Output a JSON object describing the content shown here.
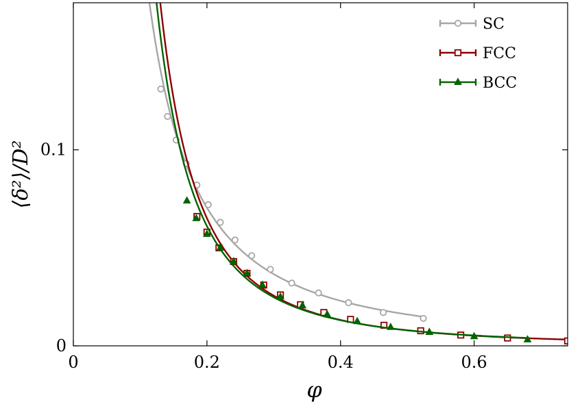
{
  "chart_data": {
    "type": "line",
    "xlabel": "φ",
    "ylabel": "⟨δ²⟩/D²",
    "xlim": [
      0,
      0.74
    ],
    "ylim": [
      0,
      0.175
    ],
    "x_ticks": [
      0,
      0.2,
      0.4,
      0.6
    ],
    "x_tick_labels": [
      "0",
      "0.2",
      "0.4",
      "0.6"
    ],
    "y_ticks": [
      0,
      0.1
    ],
    "y_tick_labels": [
      "0",
      "0.1"
    ],
    "legend_position": "top-right",
    "series": [
      {
        "name": "SC",
        "color": "#a6a6a6",
        "marker": "circle-open",
        "curve_x_range": [
          0.085,
          0.524
        ],
        "x": [
          0.131,
          0.141,
          0.154,
          0.169,
          0.185,
          0.202,
          0.22,
          0.242,
          0.267,
          0.295,
          0.327,
          0.367,
          0.412,
          0.464,
          0.524
        ],
        "y": [
          0.131,
          0.117,
          0.105,
          0.093,
          0.082,
          0.072,
          0.063,
          0.054,
          0.046,
          0.039,
          0.032,
          0.027,
          0.022,
          0.017,
          0.014
        ]
      },
      {
        "name": "FCC",
        "color": "#8b0000",
        "marker": "square-open",
        "curve_x_range": [
          0.085,
          0.74
        ],
        "x": [
          0.185,
          0.2,
          0.218,
          0.24,
          0.26,
          0.285,
          0.31,
          0.34,
          0.375,
          0.415,
          0.465,
          0.52,
          0.58,
          0.65,
          0.74
        ],
        "y": [
          0.066,
          0.058,
          0.05,
          0.043,
          0.037,
          0.031,
          0.026,
          0.021,
          0.017,
          0.0135,
          0.0105,
          0.0077,
          0.0055,
          0.004,
          0.0025
        ]
      },
      {
        "name": "BCC",
        "color": "#006400",
        "marker": "triangle-filled",
        "curve_x_range": [
          0.085,
          0.68
        ],
        "x": [
          0.17,
          0.184,
          0.2,
          0.22,
          0.24,
          0.26,
          0.283,
          0.31,
          0.343,
          0.38,
          0.425,
          0.475,
          0.533,
          0.6,
          0.68
        ],
        "y": [
          0.074,
          0.065,
          0.057,
          0.05,
          0.043,
          0.037,
          0.031,
          0.025,
          0.0205,
          0.016,
          0.0125,
          0.0095,
          0.007,
          0.0048,
          0.0032
        ]
      }
    ]
  }
}
